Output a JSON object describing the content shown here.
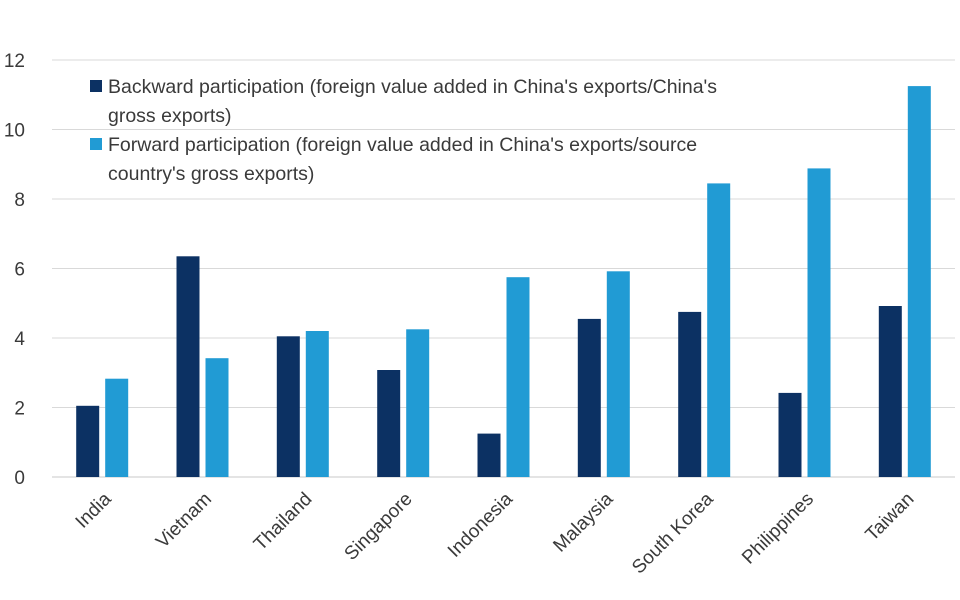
{
  "chart_data": {
    "type": "bar",
    "categories": [
      "India",
      "Vietnam",
      "Thailand",
      "Singapore",
      "Indonesia",
      "Malaysia",
      "South Korea",
      "Philippines",
      "Taiwan"
    ],
    "series": [
      {
        "name": "Backward participation (foreign value added in China's exports/China's gross exports)",
        "name_lines": [
          "Backward participation (foreign value added in China's exports/China's",
          "gross exports)"
        ],
        "values": [
          2.05,
          6.35,
          4.05,
          3.08,
          1.25,
          4.55,
          4.75,
          2.42,
          4.92
        ],
        "color": "#0c3163"
      },
      {
        "name": "Forward participation (foreign value added in China's exports/source country's gross exports)",
        "name_lines": [
          "Forward participation (foreign value added in China's exports/source",
          "country's gross exports)"
        ],
        "values": [
          2.83,
          3.42,
          4.2,
          4.25,
          5.75,
          5.92,
          8.45,
          8.88,
          11.25
        ],
        "color": "#219bd4"
      }
    ],
    "ylim": [
      0,
      12
    ],
    "yticks": [
      "0",
      "2",
      "4",
      "6",
      "8",
      "10",
      "12"
    ],
    "grid": true,
    "legend_position": "top-left"
  }
}
